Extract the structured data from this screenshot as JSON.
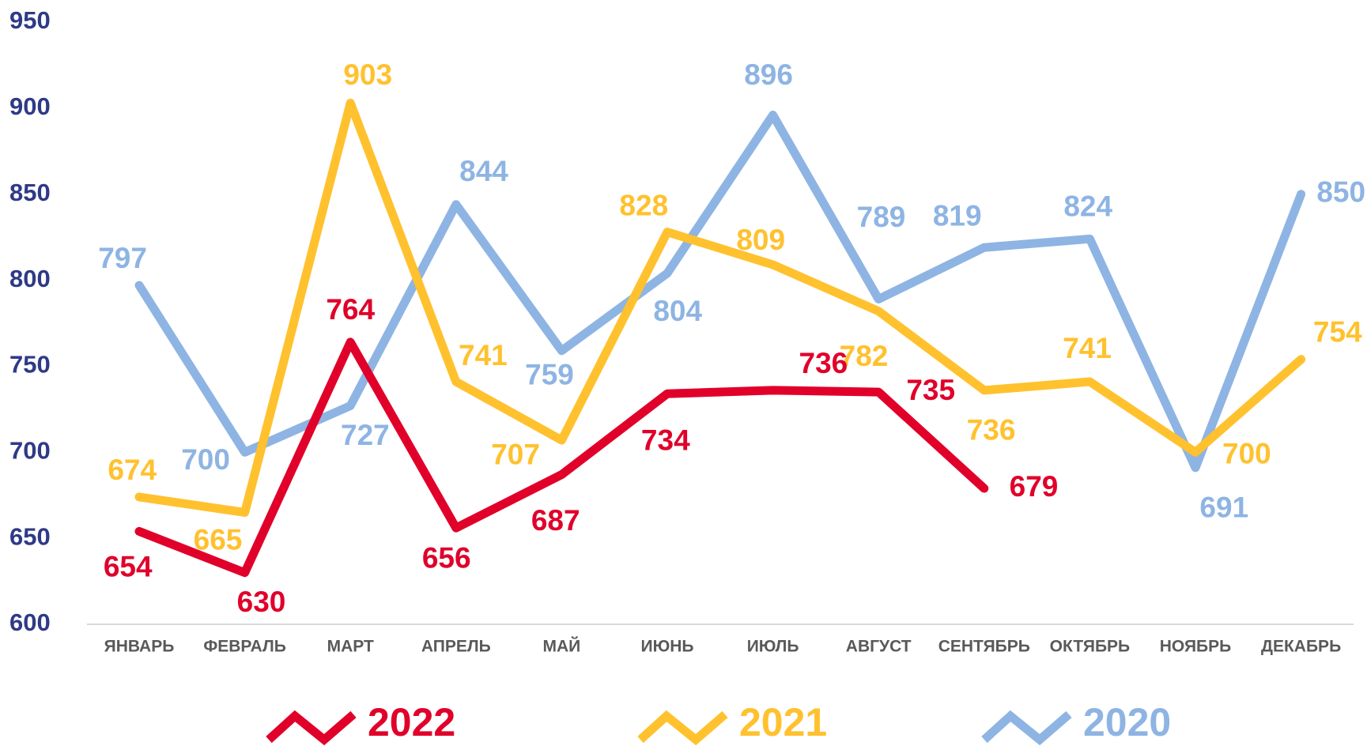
{
  "chart_data": {
    "type": "line",
    "categories": [
      "ЯНВАРЬ",
      "ФЕВРАЛЬ",
      "МАРТ",
      "АПРЕЛЬ",
      "МАЙ",
      "ИЮНЬ",
      "ИЮЛЬ",
      "АВГУСТ",
      "СЕНТЯБРЬ",
      "ОКТЯБРЬ",
      "НОЯБРЬ",
      "ДЕКАБРЬ"
    ],
    "series": [
      {
        "name": "2022",
        "color": "#e0002a",
        "values": [
          654,
          630,
          764,
          656,
          687,
          734,
          736,
          735,
          679,
          null,
          null,
          null
        ]
      },
      {
        "name": "2021",
        "color": "#ffc12e",
        "values": [
          674,
          665,
          903,
          741,
          707,
          828,
          809,
          782,
          736,
          741,
          700,
          754
        ]
      },
      {
        "name": "2020",
        "color": "#8eb4e3",
        "values": [
          797,
          700,
          727,
          844,
          759,
          804,
          896,
          789,
          819,
          824,
          691,
          850
        ]
      }
    ],
    "ylim": [
      600,
      950
    ],
    "yticks": [
      600,
      650,
      700,
      750,
      800,
      850,
      900,
      950
    ],
    "grid": false,
    "legend": "bottom"
  }
}
